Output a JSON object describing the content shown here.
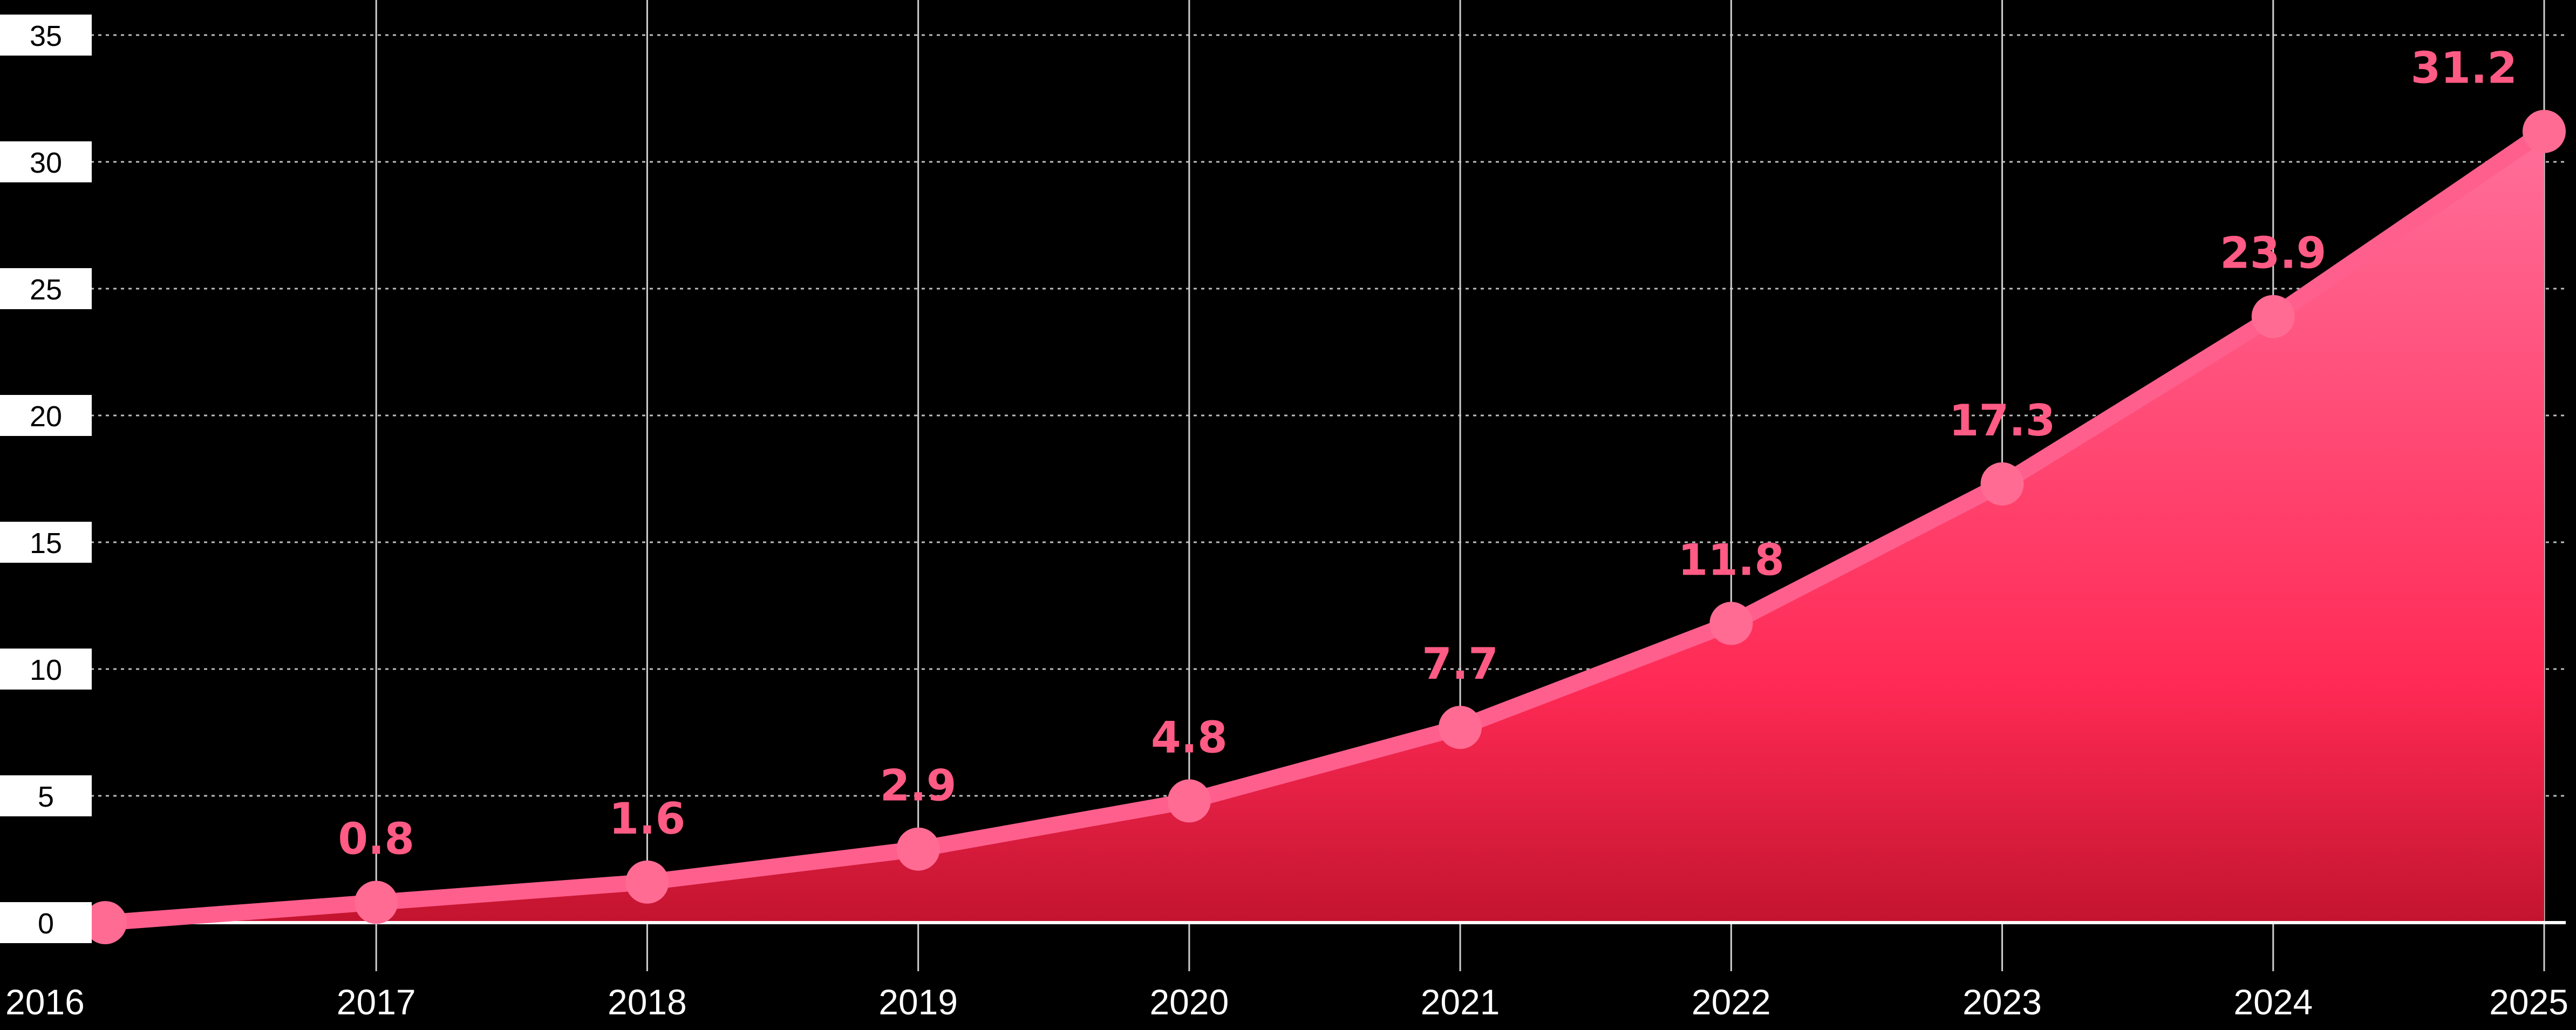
{
  "chart_data": {
    "type": "area",
    "title": "",
    "xlabel": "",
    "ylabel": "",
    "x": [
      "2016",
      "2017",
      "2018",
      "2019",
      "2020",
      "2021",
      "2022",
      "2023",
      "2024",
      "2025"
    ],
    "values": [
      0,
      0.8,
      1.6,
      2.9,
      4.8,
      7.7,
      11.8,
      17.3,
      23.9,
      31.2
    ],
    "data_labels": [
      "",
      "0.8",
      "1.6",
      "2.9",
      "4.8",
      "7.7",
      "11.8",
      "17.3",
      "23.9",
      "31.2"
    ],
    "y_ticks": [
      "0",
      "5",
      "10",
      "15",
      "20",
      "25",
      "30",
      "35"
    ],
    "ylim": [
      0,
      35
    ],
    "grid": true,
    "legend": "none",
    "colors": {
      "background": "#000000",
      "line": "#ff5f8d",
      "marker": "#ff6b93",
      "label": "#ff5b84",
      "fill_top": "#ff6f9a",
      "fill_mid": "#ff2a55",
      "fill_bottom": "#c3142f"
    }
  }
}
